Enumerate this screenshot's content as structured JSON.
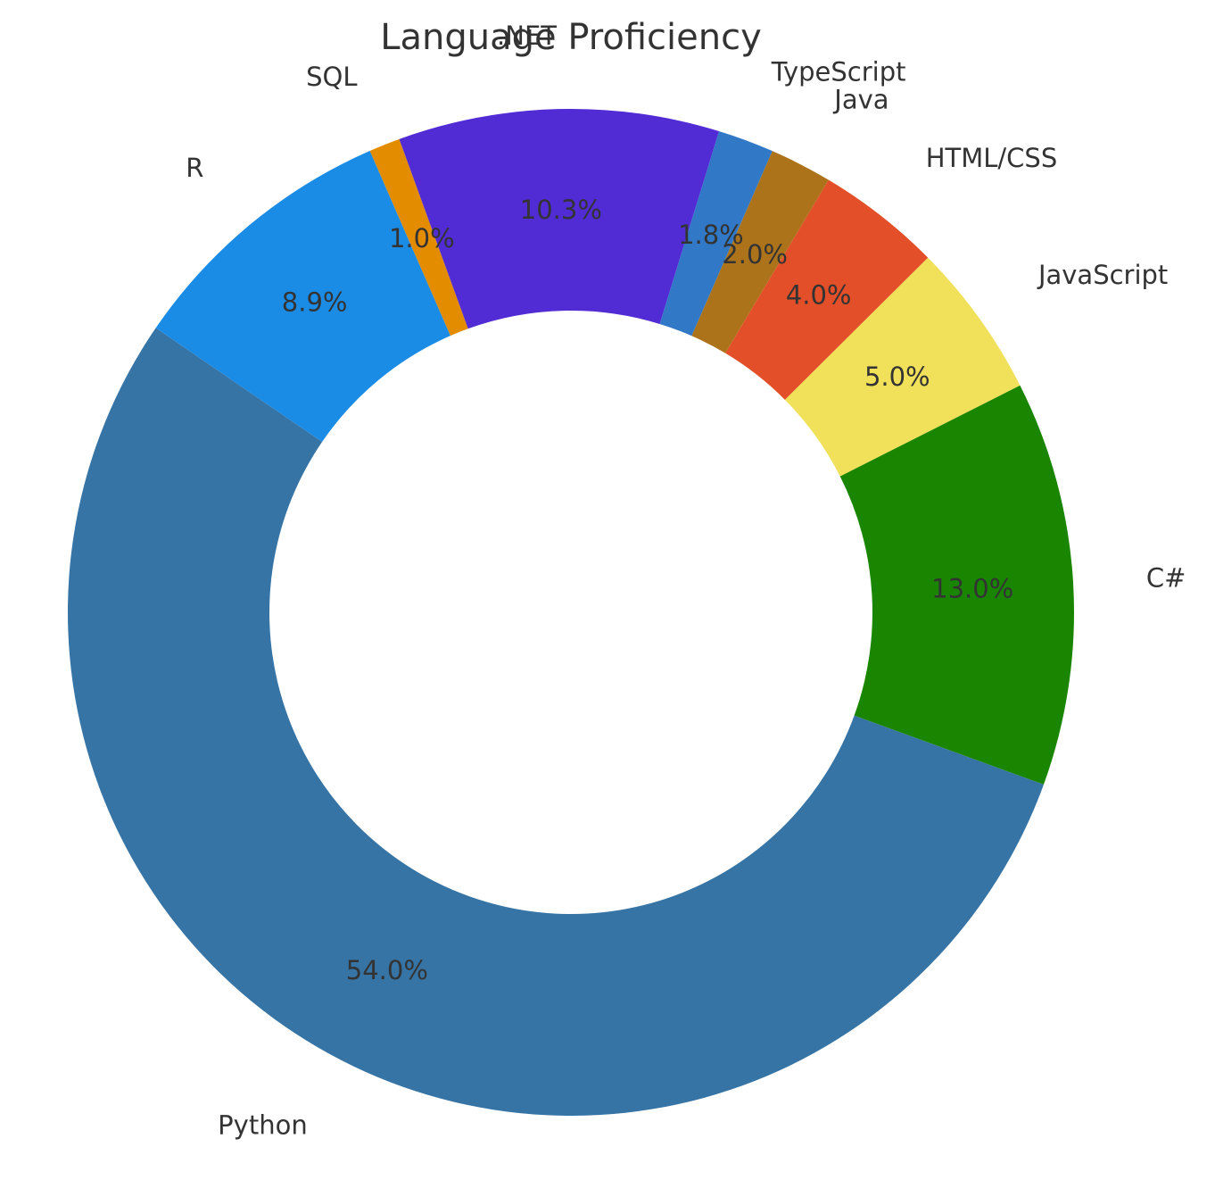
{
  "chart_data": {
    "type": "pie",
    "style": "donut",
    "title": "Language Proficiency",
    "categories": [
      "Python",
      "C#",
      "JavaScript",
      "HTML/CSS",
      "Java",
      "TypeScript",
      ".NET",
      "SQL",
      "R"
    ],
    "values": [
      54.0,
      13.0,
      5.0,
      4.0,
      2.0,
      1.8,
      10.3,
      1.0,
      8.9
    ],
    "value_labels": [
      "54.0%",
      "13.0%",
      "5.0%",
      "4.0%",
      "2.0%",
      "1.8%",
      "10.3%",
      "1.0%",
      "8.9%"
    ],
    "colors": [
      "#3674a6",
      "#1a8500",
      "#f0e05a",
      "#e34f28",
      "#ad731b",
      "#3178c6",
      "#512bd4",
      "#e38c00",
      "#1b8ce6"
    ],
    "start_angle_deg": 145.6,
    "direction": "counterclockwise",
    "legend": "none"
  }
}
